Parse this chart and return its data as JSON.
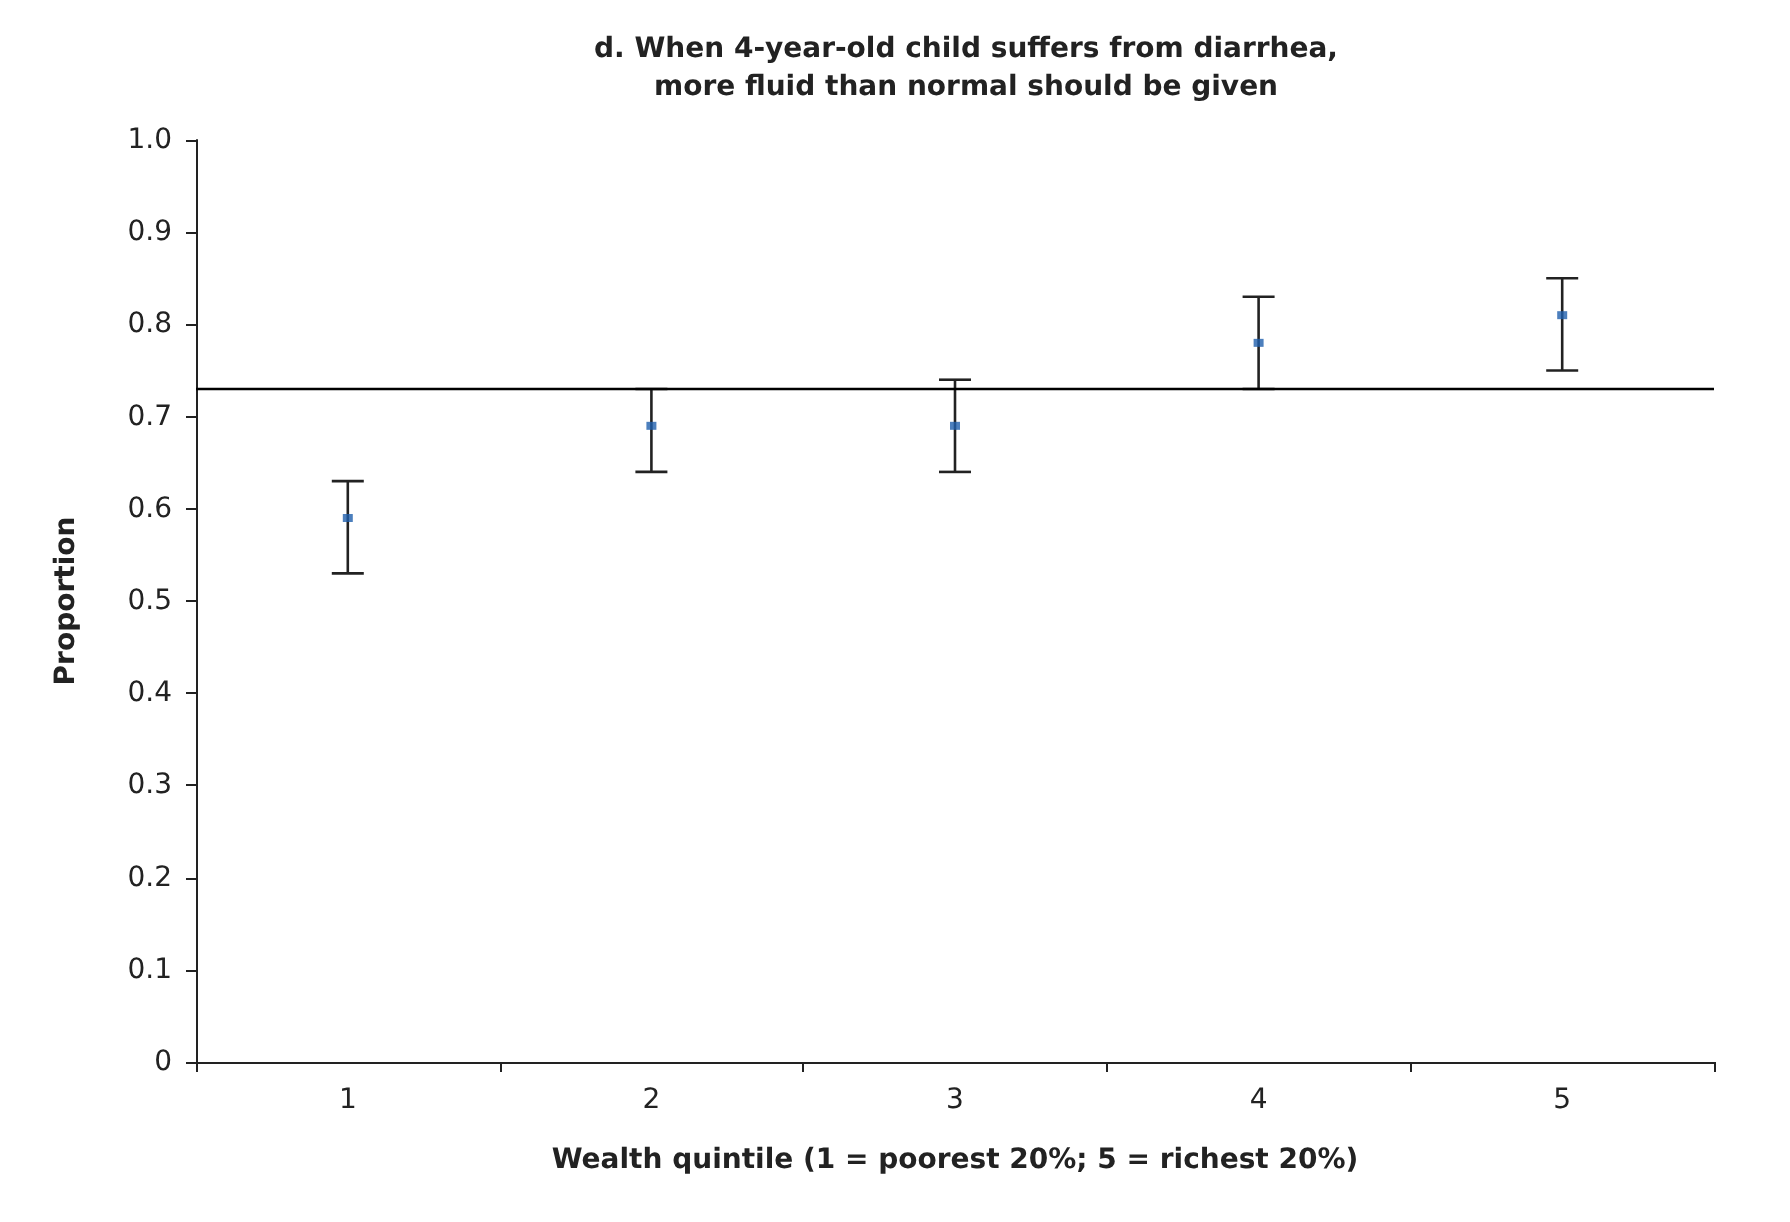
{
  "chart_data": {
    "type": "scatter",
    "title": "d. When 4-year-old child suffers from diarrhea,\nmore fluid than normal should be given",
    "xlabel": "Wealth quintile (1 = poorest 20%; 5 = richest 20%)",
    "ylabel": "Proportion",
    "categories": [
      "1",
      "2",
      "3",
      "4",
      "5"
    ],
    "values": [
      0.59,
      0.69,
      0.69,
      0.78,
      0.81
    ],
    "errors": [
      [
        0.53,
        0.63
      ],
      [
        0.64,
        0.73
      ],
      [
        0.64,
        0.74
      ],
      [
        0.73,
        0.83
      ],
      [
        0.75,
        0.85
      ]
    ],
    "color": "#1f5fad",
    "marker": "square",
    "ylim": [
      0,
      1
    ],
    "yticks": [
      0,
      0.1,
      0.2,
      0.3,
      0.4,
      0.5,
      0.6,
      0.7,
      0.8,
      0.9,
      {
        "value": 1,
        "label": "1.0"
      }
    ],
    "ref_lines": [
      {
        "axis": "y",
        "value": 0.73,
        "color": "#000000"
      }
    ],
    "grid": false
  }
}
